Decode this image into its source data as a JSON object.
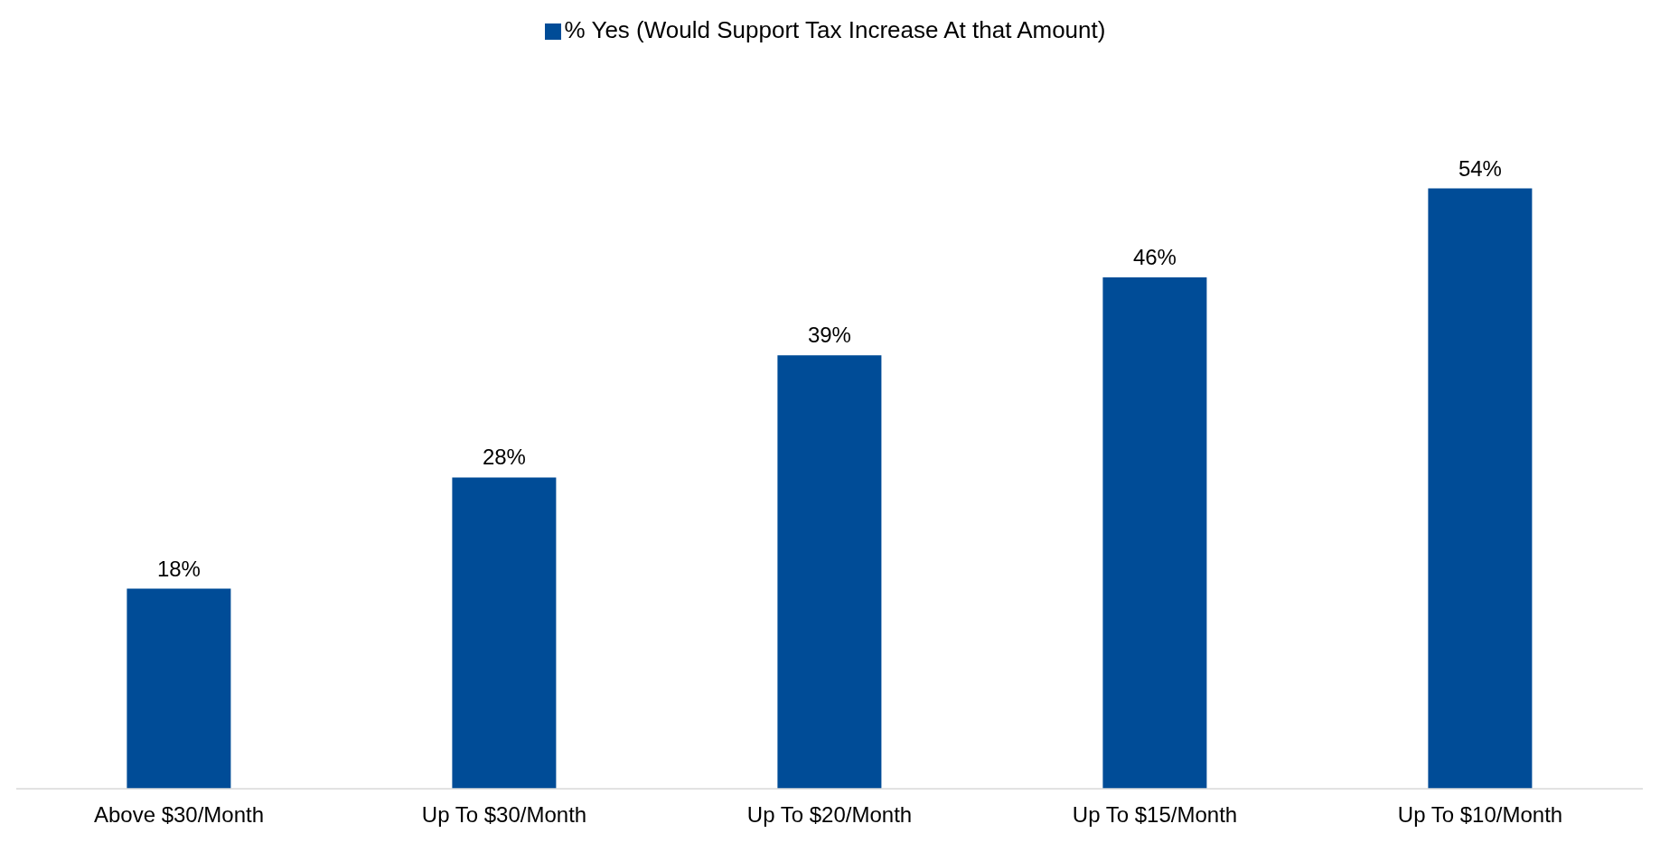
{
  "chart_data": {
    "type": "bar",
    "categories": [
      "Above $30/Month",
      "Up To $30/Month",
      "Up To $20/Month",
      "Up To $15/Month",
      "Up To $10/Month"
    ],
    "series": [
      {
        "name": "% Yes (Would Support Tax Increase At that Amount)",
        "color": "#004c97",
        "values": [
          18,
          28,
          39,
          46,
          54
        ],
        "value_labels": [
          "18%",
          "28%",
          "39%",
          "46%",
          "54%"
        ]
      }
    ],
    "legend": "top",
    "grid": false
  }
}
